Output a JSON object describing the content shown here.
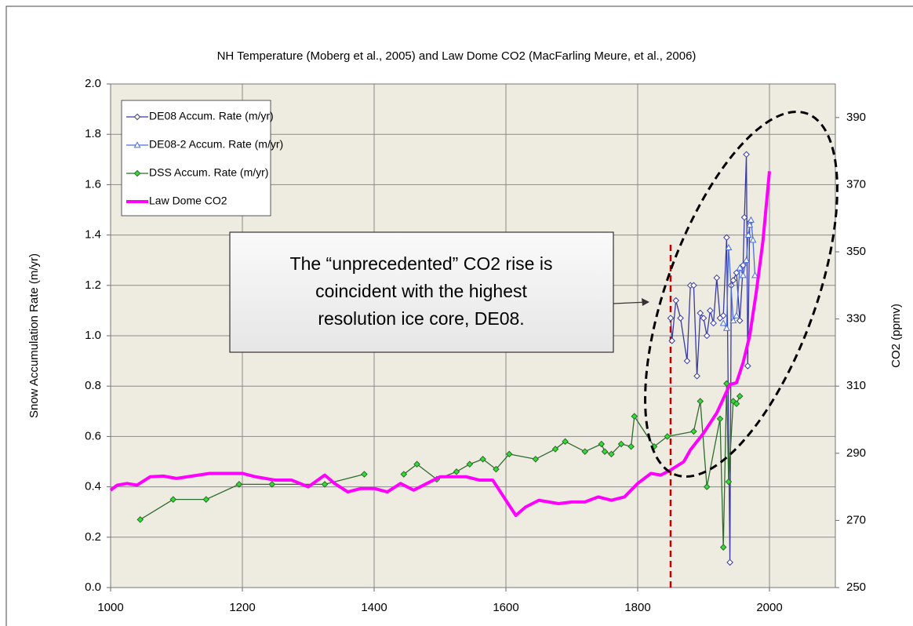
{
  "chart_data": {
    "type": "line",
    "title": "NH Temperature (Moberg et al., 2005) and Law Dome CO2 (MacFarling Meure, et al., 2006)",
    "y_label": "Snow Accumulation Rate (m/yr)",
    "y2_label": "CO2 (ppmv)",
    "xlim": [
      1000,
      2100
    ],
    "xticks": [
      1000,
      1200,
      1400,
      1600,
      1800,
      2000
    ],
    "ylim": [
      0,
      2
    ],
    "yticks": [
      {
        "value": 0,
        "label": "0.0"
      },
      0.2,
      0.4,
      0.6,
      0.8,
      {
        "value": 1,
        "label": "1.0"
      },
      1.2,
      1.4,
      1.6,
      1.8,
      {
        "value": 2,
        "label": "2.0"
      }
    ],
    "y2lim": [
      250,
      400
    ],
    "y2ticks": [
      250,
      270,
      290,
      310,
      330,
      350,
      370,
      390
    ],
    "grid": true,
    "legend": "upper left",
    "background": "#eeece1",
    "vline": {
      "x": 1850,
      "color": "#c00000"
    },
    "annotation": {
      "lines": [
        "The “unprecedented” CO2 rise is",
        "coincident with the highest",
        "resolution ice core, DE08."
      ]
    },
    "series": [
      {
        "name": "DE08 Accum. Rate (m/yr)",
        "color": "#3a3aa0",
        "marker": "diamond",
        "marker_color": "#ffffff",
        "x": [
          1850,
          1852,
          1858,
          1865,
          1875,
          1880,
          1885,
          1890,
          1895,
          1900,
          1905,
          1910,
          1915,
          1920,
          1925,
          1930,
          1935,
          1940,
          1942,
          1945,
          1950,
          1955,
          1960,
          1962,
          1965,
          1967,
          1970
        ],
        "values": [
          1.07,
          0.98,
          1.14,
          1.07,
          0.9,
          1.2,
          1.2,
          0.84,
          1.09,
          1.07,
          1.0,
          1.1,
          1.05,
          1.23,
          1.07,
          1.08,
          1.39,
          0.1,
          1.2,
          1.22,
          1.25,
          1.06,
          1.28,
          1.47,
          1.72,
          0.88,
          1.45
        ]
      },
      {
        "name": "DE08-2 Accum. Rate (m/yr)",
        "color": "#4a6ee0",
        "marker": "triangle",
        "marker_color": "#ffffff",
        "x": [
          1930,
          1935,
          1938,
          1945,
          1950,
          1955,
          1960,
          1965,
          1968,
          1970,
          1972,
          1975,
          1978
        ],
        "values": [
          1.05,
          1.03,
          1.35,
          1.06,
          1.08,
          1.27,
          1.24,
          1.3,
          1.4,
          1.44,
          1.46,
          1.38,
          1.24
        ]
      },
      {
        "name": "DSS Accum. Rate (m/yr)",
        "color": "#2e6b2e",
        "marker": "diamond",
        "marker_color": "#33dd33",
        "x": [
          1045,
          1095,
          1145,
          1195,
          1245,
          1325,
          1385,
          null,
          1445,
          1465,
          1495,
          1525,
          1545,
          1565,
          1585,
          1605,
          1645,
          1675,
          1690,
          1720,
          1745,
          1750,
          1760,
          1775,
          1790,
          1795,
          1825,
          1845,
          1885,
          1895,
          1905,
          1925,
          1930,
          1935,
          1938,
          1945,
          1950,
          1955
        ],
        "values": [
          0.27,
          0.35,
          0.35,
          0.41,
          0.41,
          0.41,
          0.45,
          null,
          0.45,
          0.49,
          0.43,
          0.46,
          0.49,
          0.51,
          0.47,
          0.53,
          0.51,
          0.55,
          0.58,
          0.54,
          0.57,
          0.54,
          0.53,
          0.57,
          0.56,
          0.68,
          0.56,
          0.6,
          0.62,
          0.74,
          0.4,
          0.67,
          0.16,
          0.81,
          0.42,
          0.74,
          0.73,
          0.76
        ]
      },
      {
        "name": "Law Dome CO2",
        "color": "#ff00ff",
        "axis": "y2",
        "width": 4,
        "x": [
          1000,
          1010,
          1025,
          1040,
          1060,
          1080,
          1100,
          1150,
          1200,
          1220,
          1250,
          1275,
          1300,
          1325,
          1340,
          1360,
          1380,
          1400,
          1420,
          1440,
          1460,
          1480,
          1500,
          1520,
          1540,
          1560,
          1580,
          1600,
          1615,
          1630,
          1650,
          1680,
          1700,
          1720,
          1740,
          1760,
          1780,
          1800,
          1820,
          1835,
          1850,
          1870,
          1880,
          1900,
          1920,
          1940,
          1950,
          1960,
          1970,
          1980,
          1990,
          2000
        ],
        "values": [
          279,
          280.5,
          281,
          280.5,
          283,
          283.2,
          282.5,
          284,
          284,
          283,
          282,
          282,
          280,
          283.5,
          281,
          278.5,
          279.5,
          279.5,
          278.5,
          281,
          279,
          281,
          283,
          283,
          283,
          282,
          282,
          276,
          271.5,
          274,
          276,
          275,
          275.5,
          275.5,
          277,
          276,
          277,
          281,
          284,
          283.5,
          285,
          287.5,
          291,
          296,
          302,
          310.5,
          311,
          317,
          325,
          338,
          353,
          374
        ]
      }
    ]
  }
}
